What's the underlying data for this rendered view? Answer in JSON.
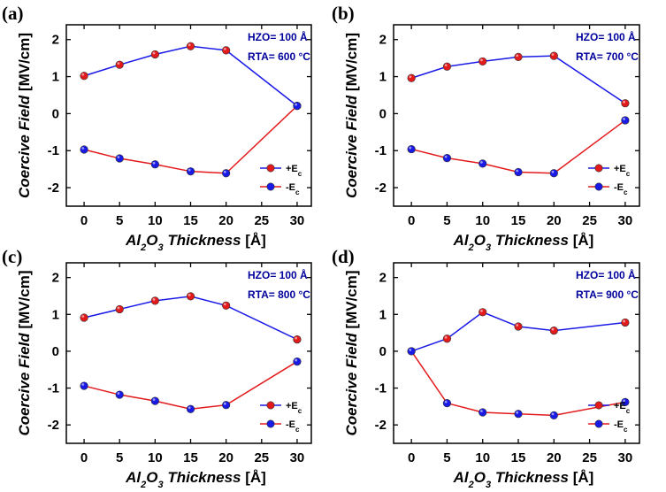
{
  "chart_data": [
    {
      "type": "line",
      "panel_label": "(a)",
      "annotation": [
        "HZO= 100 Å",
        "RTA= 600 °C"
      ],
      "x_ticks": [
        0,
        5,
        10,
        15,
        20,
        25,
        30
      ],
      "y_ticks": [
        -2,
        -1,
        0,
        1,
        2
      ],
      "xlim": [
        -2.5,
        32
      ],
      "ylim": [
        -2.5,
        2.4
      ],
      "series": [
        {
          "name": "+Ec",
          "color": "#1a1ae6",
          "marker_color": "#e31a1c",
          "x": [
            0,
            5,
            10,
            15,
            20,
            30
          ],
          "values": [
            1.02,
            1.32,
            1.6,
            1.82,
            1.71,
            0.21
          ]
        },
        {
          "name": "-Ec",
          "color": "#e31a1c",
          "marker_color": "#1a1ae6",
          "x": [
            0,
            5,
            10,
            15,
            20,
            30
          ],
          "values": [
            -0.97,
            -1.21,
            -1.37,
            -1.56,
            -1.61,
            0.21
          ]
        }
      ]
    },
    {
      "type": "line",
      "panel_label": "(b)",
      "annotation": [
        "HZO= 100 Å",
        "RTA= 700 °C"
      ],
      "x_ticks": [
        0,
        5,
        10,
        15,
        20,
        25,
        30
      ],
      "y_ticks": [
        -2,
        -1,
        0,
        1,
        2
      ],
      "xlim": [
        -2.5,
        32
      ],
      "ylim": [
        -2.5,
        2.4
      ],
      "series": [
        {
          "name": "+Ec",
          "color": "#1a1ae6",
          "marker_color": "#e31a1c",
          "x": [
            0,
            5,
            10,
            15,
            20,
            30
          ],
          "values": [
            0.96,
            1.27,
            1.41,
            1.53,
            1.56,
            0.28
          ]
        },
        {
          "name": "-Ec",
          "color": "#e31a1c",
          "marker_color": "#1a1ae6",
          "x": [
            0,
            5,
            10,
            15,
            20,
            30
          ],
          "values": [
            -0.96,
            -1.2,
            -1.35,
            -1.58,
            -1.61,
            -0.18
          ]
        }
      ]
    },
    {
      "type": "line",
      "panel_label": "(c)",
      "annotation": [
        "HZO= 100 Å",
        "RTA= 800 °C"
      ],
      "x_ticks": [
        0,
        5,
        10,
        15,
        20,
        25,
        30
      ],
      "y_ticks": [
        -2,
        -1,
        0,
        1,
        2
      ],
      "xlim": [
        -2.5,
        32
      ],
      "ylim": [
        -2.5,
        2.4
      ],
      "series": [
        {
          "name": "+Ec",
          "color": "#1a1ae6",
          "marker_color": "#e31a1c",
          "x": [
            0,
            5,
            10,
            15,
            20,
            30
          ],
          "values": [
            0.91,
            1.14,
            1.37,
            1.49,
            1.24,
            0.32
          ]
        },
        {
          "name": "-Ec",
          "color": "#e31a1c",
          "marker_color": "#1a1ae6",
          "x": [
            0,
            5,
            10,
            15,
            20,
            30
          ],
          "values": [
            -0.94,
            -1.18,
            -1.35,
            -1.57,
            -1.46,
            -0.28
          ]
        }
      ]
    },
    {
      "type": "line",
      "panel_label": "(d)",
      "annotation": [
        "HZO= 100 Å",
        "RTA= 900 °C"
      ],
      "x_ticks": [
        0,
        5,
        10,
        15,
        20,
        25,
        30
      ],
      "y_ticks": [
        -2,
        -1,
        0,
        1,
        2
      ],
      "xlim": [
        -2.5,
        32
      ],
      "ylim": [
        -2.5,
        2.4
      ],
      "series": [
        {
          "name": "+Ec",
          "color": "#1a1ae6",
          "marker_color": "#e31a1c",
          "x": [
            0,
            5,
            10,
            15,
            20,
            30
          ],
          "values": [
            0.0,
            0.34,
            1.06,
            0.67,
            0.56,
            0.78
          ]
        },
        {
          "name": "-Ec",
          "color": "#e31a1c",
          "marker_color": "#1a1ae6",
          "x": [
            0,
            5,
            10,
            15,
            20,
            30
          ],
          "values": [
            0.0,
            -1.41,
            -1.66,
            -1.7,
            -1.74,
            -1.38
          ]
        }
      ]
    }
  ],
  "axes": {
    "xlabel_prefix": "Al",
    "xlabel_sub1": "2",
    "xlabel_mid": "O",
    "xlabel_sub2": "3",
    "xlabel_rest": " Thickness ",
    "xlabel_unit": "[Å]",
    "ylabel": "Coercive Field ",
    "ylabel_unit": "[MV/cm]"
  },
  "legend": {
    "pos_base": "+E",
    "neg_base": "-E",
    "subscript": "c",
    "placement": "lower-right"
  }
}
